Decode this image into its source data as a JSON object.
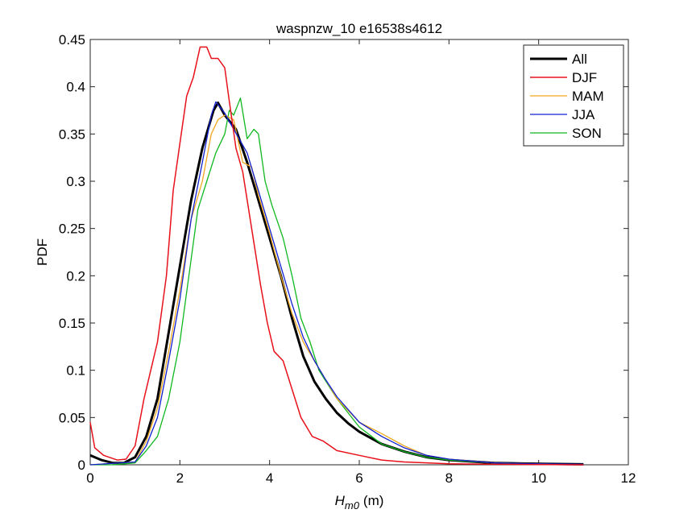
{
  "chart_data": {
    "type": "line",
    "title": "waspnzw_10 e16538s4612",
    "xlabel_main": "H",
    "xlabel_sub": "m0",
    "xlabel_unit": "(m)",
    "ylabel": "PDF",
    "xlim": [
      0,
      12
    ],
    "ylim": [
      0,
      0.45
    ],
    "xticks": [
      "0",
      "2",
      "4",
      "6",
      "8",
      "10",
      "12"
    ],
    "yticks": [
      "0",
      "0.05",
      "0.1",
      "0.15",
      "0.2",
      "0.25",
      "0.3",
      "0.35",
      "0.4",
      "0.45"
    ],
    "grid": false,
    "legend_position": "top-right",
    "series": [
      {
        "name": "All",
        "color": "#000000",
        "width": 3,
        "x": [
          0,
          0.25,
          0.5,
          0.75,
          1.0,
          1.25,
          1.5,
          1.75,
          2.0,
          2.25,
          2.5,
          2.75,
          2.85,
          3.0,
          3.25,
          3.5,
          3.75,
          4.0,
          4.25,
          4.5,
          4.75,
          5.0,
          5.25,
          5.5,
          5.75,
          6.0,
          6.5,
          7.0,
          7.5,
          8.0,
          9.0,
          10.0,
          11.0
        ],
        "y": [
          0.01,
          0.005,
          0.002,
          0.002,
          0.008,
          0.03,
          0.07,
          0.14,
          0.21,
          0.28,
          0.335,
          0.375,
          0.383,
          0.37,
          0.355,
          0.32,
          0.28,
          0.24,
          0.2,
          0.155,
          0.115,
          0.088,
          0.07,
          0.055,
          0.044,
          0.035,
          0.022,
          0.014,
          0.008,
          0.005,
          0.002,
          0.001,
          0.0005
        ]
      },
      {
        "name": "DJF",
        "color": "#e8101a",
        "width": 1.5,
        "x": [
          0,
          0.1,
          0.3,
          0.6,
          0.8,
          1.0,
          1.2,
          1.5,
          1.7,
          1.85,
          2.0,
          2.15,
          2.3,
          2.45,
          2.6,
          2.7,
          2.85,
          3.0,
          3.1,
          3.25,
          3.4,
          3.6,
          3.8,
          3.95,
          4.1,
          4.3,
          4.5,
          4.7,
          4.95,
          5.2,
          5.5,
          6.0,
          6.5,
          7.0,
          8.0,
          9.0,
          11.0
        ],
        "y": [
          0.045,
          0.018,
          0.01,
          0.005,
          0.006,
          0.02,
          0.07,
          0.13,
          0.2,
          0.29,
          0.34,
          0.39,
          0.41,
          0.442,
          0.442,
          0.43,
          0.43,
          0.42,
          0.385,
          0.335,
          0.31,
          0.25,
          0.19,
          0.15,
          0.12,
          0.11,
          0.08,
          0.05,
          0.03,
          0.025,
          0.015,
          0.01,
          0.005,
          0.003,
          0.001,
          0.0005,
          0
        ]
      },
      {
        "name": "MAM",
        "color": "#f0a820",
        "width": 1.3,
        "x": [
          0,
          1.0,
          1.25,
          1.5,
          1.75,
          2.0,
          2.25,
          2.5,
          2.7,
          2.85,
          3.0,
          3.2,
          3.4,
          3.6,
          3.75,
          4.0,
          4.25,
          4.5,
          4.75,
          5.0,
          5.25,
          5.5,
          6.0,
          6.5,
          7.0,
          7.5,
          8.0,
          9.0,
          10.0,
          11.0
        ],
        "y": [
          0,
          0.003,
          0.025,
          0.06,
          0.12,
          0.185,
          0.26,
          0.3,
          0.35,
          0.365,
          0.37,
          0.365,
          0.32,
          0.315,
          0.285,
          0.245,
          0.2,
          0.16,
          0.13,
          0.11,
          0.09,
          0.07,
          0.045,
          0.033,
          0.02,
          0.01,
          0.006,
          0.002,
          0.001,
          0
        ]
      },
      {
        "name": "JJA",
        "color": "#1020d0",
        "width": 1.3,
        "x": [
          0,
          1.0,
          1.25,
          1.5,
          1.75,
          2.0,
          2.25,
          2.5,
          2.7,
          2.8,
          3.0,
          3.2,
          3.5,
          3.75,
          4.0,
          4.25,
          4.5,
          4.75,
          5.0,
          5.25,
          5.5,
          6.0,
          6.5,
          7.0,
          7.5,
          8.0,
          9.0,
          10.0,
          11.0
        ],
        "y": [
          0,
          0.003,
          0.02,
          0.05,
          0.11,
          0.175,
          0.26,
          0.32,
          0.37,
          0.384,
          0.372,
          0.355,
          0.33,
          0.29,
          0.25,
          0.21,
          0.17,
          0.135,
          0.11,
          0.09,
          0.072,
          0.045,
          0.03,
          0.018,
          0.01,
          0.006,
          0.002,
          0.001,
          0.0005
        ]
      },
      {
        "name": "SON",
        "color": "#10b820",
        "width": 1.3,
        "x": [
          0,
          0.5,
          1.0,
          1.25,
          1.5,
          1.75,
          2.0,
          2.2,
          2.4,
          2.6,
          2.8,
          3.0,
          3.1,
          3.2,
          3.35,
          3.5,
          3.65,
          3.75,
          3.9,
          4.05,
          4.3,
          4.5,
          4.7,
          4.9,
          5.1,
          5.5,
          6.0,
          6.5,
          7.0,
          7.5,
          8.0,
          9.0,
          11.0
        ],
        "y": [
          0,
          0,
          0.002,
          0.015,
          0.03,
          0.07,
          0.13,
          0.2,
          0.27,
          0.3,
          0.33,
          0.35,
          0.375,
          0.37,
          0.388,
          0.345,
          0.355,
          0.35,
          0.3,
          0.275,
          0.24,
          0.2,
          0.155,
          0.13,
          0.1,
          0.07,
          0.04,
          0.022,
          0.014,
          0.008,
          0.005,
          0.002,
          0
        ]
      }
    ]
  }
}
